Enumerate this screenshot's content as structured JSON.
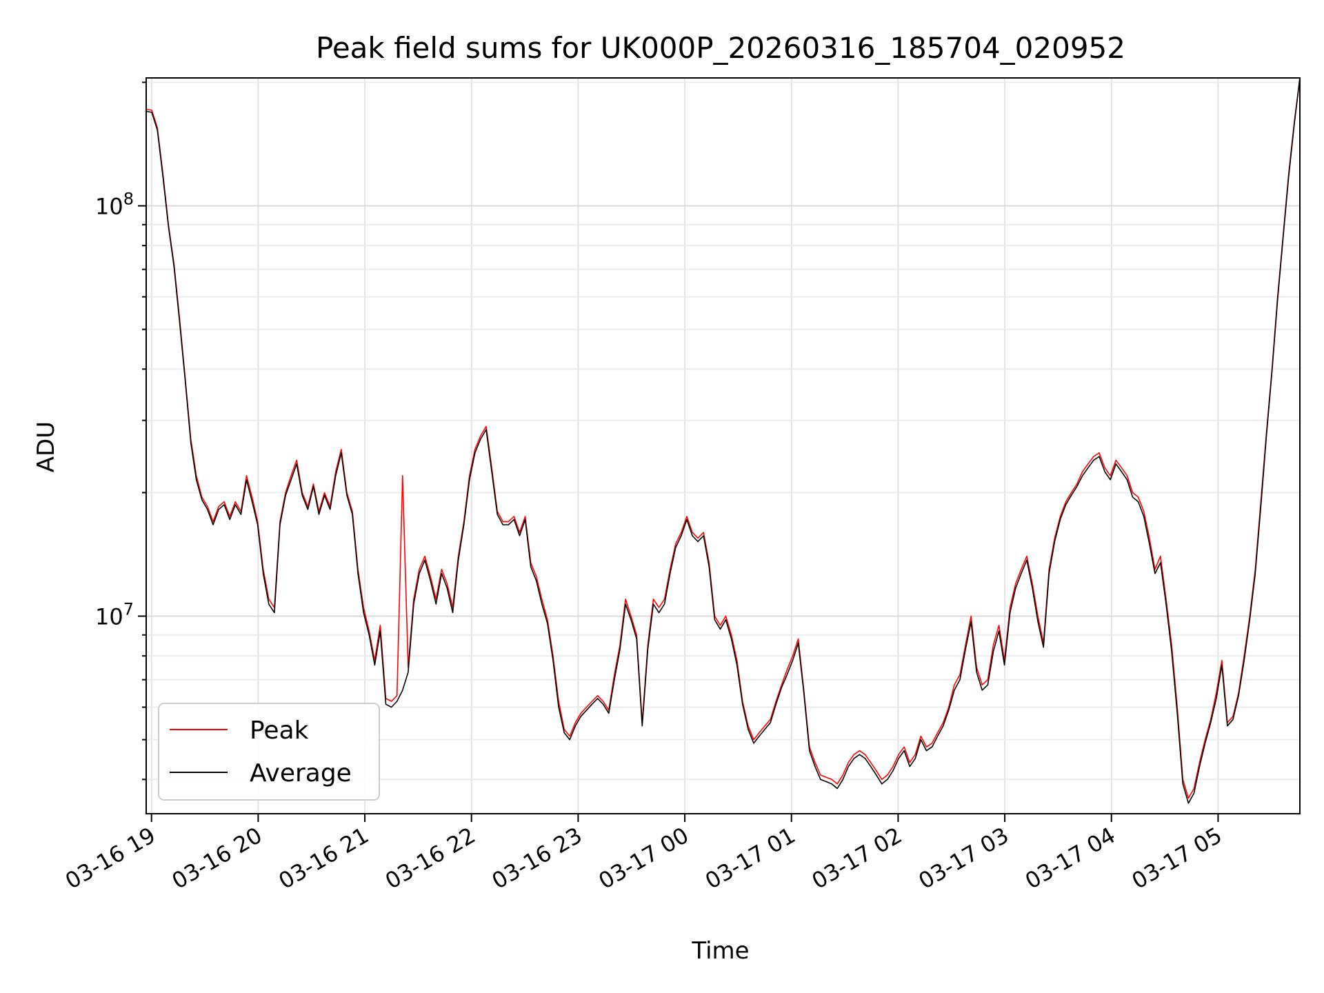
{
  "chart_data": {
    "type": "line",
    "title": "Peak field sums for UK000P_20260316_185704_020952",
    "xlabel": "Time",
    "ylabel": "ADU",
    "x_tick_labels": [
      "03-16 19",
      "03-16 20",
      "03-16 21",
      "03-16 22",
      "03-16 23",
      "03-17 00",
      "03-17 01",
      "03-17 02",
      "03-17 03",
      "03-17 04",
      "03-17 05"
    ],
    "y_tick_labels": [
      {
        "base": "10",
        "exp": "7",
        "value": 10000000
      },
      {
        "base": "10",
        "exp": "8",
        "value": 100000000
      }
    ],
    "x_start": "2026-03-16 18:57",
    "x_end": "2026-03-17 05:46",
    "xlim": [
      "2026-03-16 18:57",
      "2026-03-17 05:46"
    ],
    "ylim": [
      3300000,
      205000000
    ],
    "yscale": "log",
    "grid": true,
    "legend_position": "lower-left",
    "series": [
      {
        "name": "Peak",
        "color": "#ff0000",
        "values": [
          172000000.0,
          171000000.0,
          155000000.0,
          120000000.0,
          90000000.0,
          72000000.0,
          53000000.0,
          38000000.0,
          27000000.0,
          22000000.0,
          19500000.0,
          18500000.0,
          17000000.0,
          18500000.0,
          19000000.0,
          17500000.0,
          19000000.0,
          18000000.0,
          22000000.0,
          19500000.0,
          17000000.0,
          13000000.0,
          11000000.0,
          10500000.0,
          17000000.0,
          20000000.0,
          22000000.0,
          24000000.0,
          20000000.0,
          18500000.0,
          21000000.0,
          18000000.0,
          20000000.0,
          18500000.0,
          22500000.0,
          25500000.0,
          20000000.0,
          18000000.0,
          13000000.0,
          10500000.0,
          9200000.0,
          7800000.0,
          9500000.0,
          6300000.0,
          6200000.0,
          6400000.0,
          22000000.0,
          7500000.0,
          11000000.0,
          13000000.0,
          14000000.0,
          12500000.0,
          11000000.0,
          13000000.0,
          12000000.0,
          10500000.0,
          14000000.0,
          17000000.0,
          22000000.0,
          25500000.0,
          27500000.0,
          29000000.0,
          23000000.0,
          18000000.0,
          17000000.0,
          17000000.0,
          17500000.0,
          16000000.0,
          17500000.0,
          13500000.0,
          12500000.0,
          11000000.0,
          9800000.0,
          8000000.0,
          6200000.0,
          5300000.0,
          5100000.0,
          5500000.0,
          5800000.0,
          6000000.0,
          6200000.0,
          6400000.0,
          6200000.0,
          5900000.0,
          7200000.0,
          8500000.0,
          11000000.0,
          10000000.0,
          9000000.0,
          5500000.0,
          8500000.0,
          11000000.0,
          10500000.0,
          11000000.0,
          13000000.0,
          15000000.0,
          16000000.0,
          17500000.0,
          16000000.0,
          15500000.0,
          16000000.0,
          13500000.0,
          10000000.0,
          9500000.0,
          10000000.0,
          9000000.0,
          7800000.0,
          6200000.0,
          5400000.0,
          5000000.0,
          5200000.0,
          5400000.0,
          5600000.0,
          6200000.0,
          6800000.0,
          7400000.0,
          8000000.0,
          8800000.0,
          6600000.0,
          4800000.0,
          4400000.0,
          4100000.0,
          4050000.0,
          4000000.0,
          3900000.0,
          4100000.0,
          4400000.0,
          4600000.0,
          4700000.0,
          4600000.0,
          4400000.0,
          4200000.0,
          4000000.0,
          4100000.0,
          4300000.0,
          4600000.0,
          4800000.0,
          4400000.0,
          4600000.0,
          5100000.0,
          4800000.0,
          4900000.0,
          5200000.0,
          5500000.0,
          6000000.0,
          6800000.0,
          7200000.0,
          8500000.0,
          10000000.0,
          7500000.0,
          6800000.0,
          7000000.0,
          8500000.0,
          9500000.0,
          7800000.0,
          10500000.0,
          12000000.0,
          13000000.0,
          14000000.0,
          12000000.0,
          10000000.0,
          8600000.0,
          13000000.0,
          15500000.0,
          17500000.0,
          19000000.0,
          20000000.0,
          21000000.0,
          22500000.0,
          23500000.0,
          24500000.0,
          25000000.0,
          23000000.0,
          22000000.0,
          24000000.0,
          23000000.0,
          22000000.0,
          20000000.0,
          19500000.0,
          18000000.0,
          15500000.0,
          13000000.0,
          14000000.0,
          11000000.0,
          8500000.0,
          6000000.0,
          4000000.0,
          3600000.0,
          3800000.0,
          4400000.0,
          5000000.0,
          5600000.0,
          6500000.0,
          7800000.0,
          5500000.0,
          5700000.0,
          6500000.0,
          8000000.0,
          10000000.0,
          13000000.0,
          19000000.0,
          28000000.0,
          40000000.0,
          60000000.0,
          85000000.0,
          120000000.0,
          160000000.0,
          205000000.0
        ]
      },
      {
        "name": "Average",
        "color": "#000000",
        "values": [
          170000000.0,
          169000000.0,
          153000000.0,
          118000000.0,
          89000000.0,
          71000000.0,
          52000000.0,
          37500000.0,
          26500000.0,
          21500000.0,
          19200000.0,
          18200000.0,
          16700000.0,
          18200000.0,
          18700000.0,
          17200000.0,
          18700000.0,
          17700000.0,
          21500000.0,
          19000000.0,
          16700000.0,
          12700000.0,
          10700000.0,
          10200000.0,
          16700000.0,
          19700000.0,
          21500000.0,
          23500000.0,
          19700000.0,
          18200000.0,
          20700000.0,
          17700000.0,
          19700000.0,
          18200000.0,
          22000000.0,
          25000000.0,
          19700000.0,
          17700000.0,
          12700000.0,
          10200000.0,
          9000000.0,
          7600000.0,
          9200000.0,
          6100000.0,
          6000000.0,
          6200000.0,
          6600000.0,
          7300000.0,
          10700000.0,
          12700000.0,
          13700000.0,
          12200000.0,
          10700000.0,
          12700000.0,
          11700000.0,
          10200000.0,
          13700000.0,
          16700000.0,
          21500000.0,
          25000000.0,
          27000000.0,
          28500000.0,
          22500000.0,
          17700000.0,
          16700000.0,
          16700000.0,
          17200000.0,
          15700000.0,
          17200000.0,
          13200000.0,
          12200000.0,
          10700000.0,
          9600000.0,
          7800000.0,
          6000000.0,
          5200000.0,
          5000000.0,
          5400000.0,
          5700000.0,
          5900000.0,
          6100000.0,
          6300000.0,
          6100000.0,
          5800000.0,
          7000000.0,
          8300000.0,
          10700000.0,
          9800000.0,
          8800000.0,
          5400000.0,
          8300000.0,
          10700000.0,
          10200000.0,
          10700000.0,
          12700000.0,
          14700000.0,
          15700000.0,
          17200000.0,
          15700000.0,
          15200000.0,
          15700000.0,
          13200000.0,
          9800000.0,
          9300000.0,
          9800000.0,
          8800000.0,
          7600000.0,
          6100000.0,
          5300000.0,
          4900000.0,
          5100000.0,
          5300000.0,
          5500000.0,
          6100000.0,
          6700000.0,
          7200000.0,
          7800000.0,
          8600000.0,
          6500000.0,
          4700000.0,
          4300000.0,
          4000000.0,
          3950000.0,
          3900000.0,
          3800000.0,
          4000000.0,
          4300000.0,
          4500000.0,
          4600000.0,
          4500000.0,
          4300000.0,
          4100000.0,
          3900000.0,
          4000000.0,
          4200000.0,
          4500000.0,
          4700000.0,
          4300000.0,
          4500000.0,
          5000000.0,
          4700000.0,
          4800000.0,
          5100000.0,
          5400000.0,
          5900000.0,
          6600000.0,
          7000000.0,
          8300000.0,
          9700000.0,
          7300000.0,
          6600000.0,
          6800000.0,
          8200000.0,
          9200000.0,
          7600000.0,
          10200000.0,
          11700000.0,
          12700000.0,
          13700000.0,
          11700000.0,
          9700000.0,
          8400000.0,
          12700000.0,
          15200000.0,
          17200000.0,
          18700000.0,
          19700000.0,
          20700000.0,
          22000000.0,
          23000000.0,
          24000000.0,
          24500000.0,
          22500000.0,
          21500000.0,
          23500000.0,
          22500000.0,
          21500000.0,
          19500000.0,
          19000000.0,
          17500000.0,
          15000000.0,
          12700000.0,
          13500000.0,
          10700000.0,
          8200000.0,
          5800000.0,
          3900000.0,
          3500000.0,
          3700000.0,
          4300000.0,
          4900000.0,
          5500000.0,
          6300000.0,
          7600000.0,
          5400000.0,
          5600000.0,
          6400000.0,
          7800000.0,
          9800000.0,
          12700000.0,
          18500000.0,
          27500000.0,
          39500000.0,
          59000000.0,
          84000000.0,
          118000000.0,
          158000000.0,
          205000000.0
        ]
      }
    ]
  }
}
